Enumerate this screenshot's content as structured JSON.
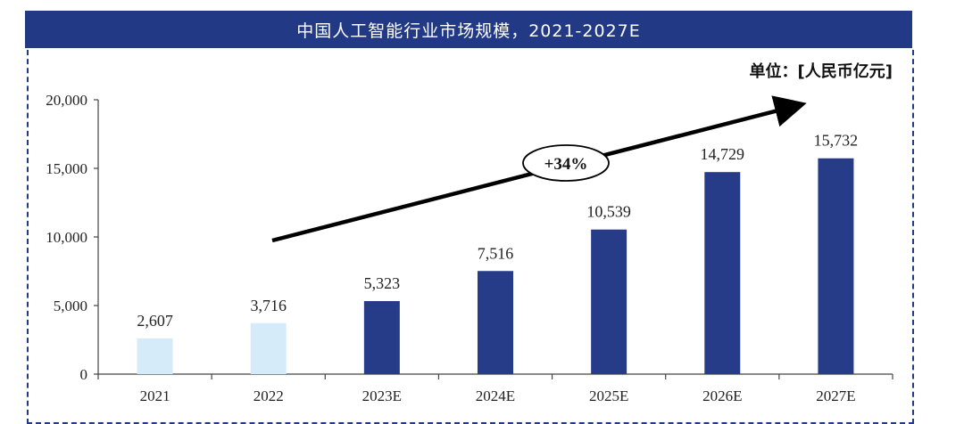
{
  "chart_data": {
    "type": "bar",
    "title": "中国人工智能行业市场规模，2021-2027E",
    "unit": "单位：[人民币亿元]",
    "categories": [
      "2021",
      "2022",
      "2023E",
      "2024E",
      "2025E",
      "2026E",
      "2027E"
    ],
    "values": [
      2607,
      3716,
      5323,
      7516,
      10539,
      14729,
      15732
    ],
    "value_labels": [
      "2,607",
      "3,716",
      "5,323",
      "7,516",
      "10,539",
      "14,729",
      "15,732"
    ],
    "ylim": [
      0,
      20000
    ],
    "yticks": [
      0,
      5000,
      10000,
      15000,
      20000
    ],
    "ytick_labels": [
      "0",
      "5,000",
      "10,000",
      "15,000",
      "20,000"
    ],
    "bar_colors": [
      "#d6ebfa",
      "#d6ebfa",
      "#263c88",
      "#263c88",
      "#263c88",
      "#263c88",
      "#263c88"
    ],
    "growth_annotation": "+34%"
  }
}
